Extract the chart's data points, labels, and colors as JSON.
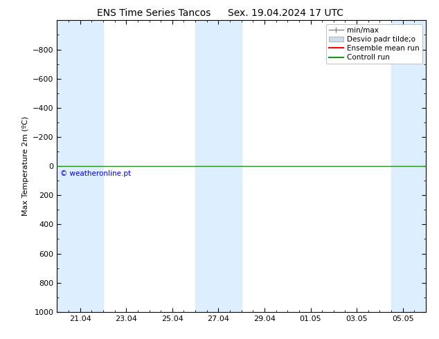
{
  "title_left": "ENS Time Series Tancos",
  "title_right": "Sex. 19.04.2024 17 UTC",
  "ylabel": "Max Temperature 2m (ºC)",
  "ylim_top": -1000,
  "ylim_bottom": 1000,
  "yticks": [
    -800,
    -600,
    -400,
    -200,
    0,
    200,
    400,
    600,
    800,
    1000
  ],
  "x_min": 0,
  "x_max": 16,
  "xtick_labels": [
    "21.04",
    "23.04",
    "25.04",
    "27.04",
    "29.04",
    "01.05",
    "03.05",
    "05.05"
  ],
  "xtick_positions": [
    1,
    3,
    5,
    7,
    9,
    11,
    13,
    15
  ],
  "shaded_bands": [
    [
      0.0,
      1.0
    ],
    [
      1.0,
      2.0
    ],
    [
      6.0,
      7.0
    ],
    [
      7.0,
      8.0
    ],
    [
      14.5,
      16.0
    ]
  ],
  "band_color_outer": "#ccddf0",
  "band_color_inner": "#ddeeff",
  "horizontal_line_y": 0,
  "line_color_green": "#228b22",
  "line_color_red": "#ff0000",
  "background_color": "#ffffff",
  "plot_bg_color": "#ffffff",
  "border_color": "#000000",
  "copyright_text": "© weatheronline.pt",
  "copyright_color": "#0000cc",
  "legend_items": [
    "min/max",
    "Desvio padr tilde;o",
    "Ensemble mean run",
    "Controll run"
  ],
  "legend_line_colors": [
    "#808080",
    "#aaaaaa",
    "#ff0000",
    "#228b22"
  ],
  "title_fontsize": 10,
  "axis_fontsize": 8,
  "tick_fontsize": 8,
  "legend_fontsize": 7.5
}
